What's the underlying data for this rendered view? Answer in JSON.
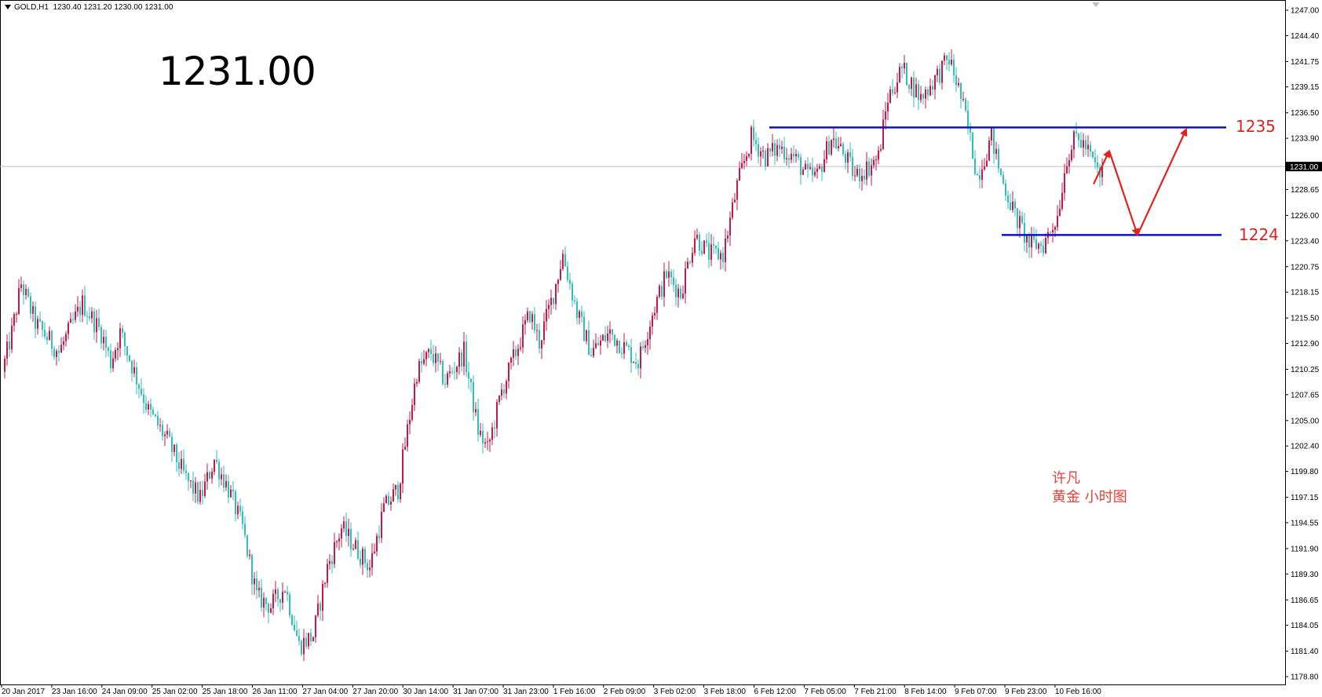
{
  "header": {
    "symbol": "GOLD,H1",
    "ohlc": "1230.40 1231.20 1230.00 1231.00"
  },
  "current_price_label": "1231.00",
  "levels": {
    "resistance_label": "1235",
    "support_label": "1224"
  },
  "annotation": {
    "author": "许凡",
    "description": "黄金  小时图"
  },
  "colors": {
    "bull": "#c8174a",
    "bear": "#2fbfbf",
    "level_line": "#1010c8",
    "arrow": "#e0231e",
    "grid_price_line": "#c0c0c0"
  },
  "chart_data": {
    "type": "candlestick",
    "timeframe": "H1",
    "ylim": [
      1178.8,
      1247.0
    ],
    "y_ticks": [
      "1247.00",
      "1244.40",
      "1241.75",
      "1239.15",
      "1236.50",
      "1233.90",
      "1231.00",
      "1228.65",
      "1226.00",
      "1223.40",
      "1220.75",
      "1218.15",
      "1215.50",
      "1212.90",
      "1210.25",
      "1207.65",
      "1205.00",
      "1202.40",
      "1199.80",
      "1197.15",
      "1194.55",
      "1191.90",
      "1189.30",
      "1186.65",
      "1184.05",
      "1181.40",
      "1178.80"
    ],
    "x_ticks": [
      "20 Jan 2017",
      "23 Jan 16:00",
      "24 Jan 09:00",
      "25 Jan 02:00",
      "25 Jan 18:00",
      "26 Jan 11:00",
      "27 Jan 04:00",
      "27 Jan 20:00",
      "30 Jan 14:00",
      "31 Jan 07:00",
      "31 Jan 23:00",
      "1 Feb 16:00",
      "2 Feb 09:00",
      "3 Feb 02:00",
      "3 Feb 18:00",
      "6 Feb 12:00",
      "7 Feb 05:00",
      "7 Feb 21:00",
      "8 Feb 14:00",
      "9 Feb 07:00",
      "9 Feb 23:00",
      "10 Feb 16:00"
    ],
    "last_price": 1231.0,
    "horizontal_levels": [
      1235,
      1224
    ],
    "path_keypoints": [
      [
        0,
        1210
      ],
      [
        4,
        1214
      ],
      [
        8,
        1219
      ],
      [
        14,
        1215
      ],
      [
        24,
        1212
      ],
      [
        34,
        1217
      ],
      [
        42,
        1214
      ],
      [
        46,
        1211
      ],
      [
        50,
        1214
      ],
      [
        56,
        1210
      ],
      [
        62,
        1206
      ],
      [
        70,
        1203
      ],
      [
        78,
        1199
      ],
      [
        84,
        1197
      ],
      [
        90,
        1201
      ],
      [
        96,
        1198
      ],
      [
        102,
        1194
      ],
      [
        108,
        1187
      ],
      [
        114,
        1186
      ],
      [
        120,
        1188
      ],
      [
        126,
        1182
      ],
      [
        132,
        1183
      ],
      [
        138,
        1190
      ],
      [
        144,
        1194
      ],
      [
        150,
        1192
      ],
      [
        156,
        1190
      ],
      [
        162,
        1196
      ],
      [
        168,
        1198
      ],
      [
        172,
        1204
      ],
      [
        176,
        1210
      ],
      [
        182,
        1212
      ],
      [
        188,
        1209
      ],
      [
        196,
        1212
      ],
      [
        202,
        1204
      ],
      [
        206,
        1202
      ],
      [
        212,
        1208
      ],
      [
        218,
        1212
      ],
      [
        224,
        1216
      ],
      [
        228,
        1213
      ],
      [
        234,
        1218
      ],
      [
        238,
        1222
      ],
      [
        244,
        1216
      ],
      [
        250,
        1212
      ],
      [
        258,
        1214
      ],
      [
        266,
        1212
      ],
      [
        270,
        1211
      ],
      [
        276,
        1216
      ],
      [
        282,
        1220
      ],
      [
        288,
        1218
      ],
      [
        294,
        1224
      ],
      [
        300,
        1222
      ],
      [
        306,
        1222
      ],
      [
        312,
        1229
      ],
      [
        318,
        1234
      ],
      [
        324,
        1232
      ],
      [
        330,
        1233
      ],
      [
        336,
        1232
      ],
      [
        342,
        1230
      ],
      [
        346,
        1230
      ],
      [
        352,
        1234
      ],
      [
        358,
        1232
      ],
      [
        362,
        1230
      ],
      [
        368,
        1231
      ],
      [
        372,
        1232
      ],
      [
        376,
        1238
      ],
      [
        382,
        1241
      ],
      [
        390,
        1238
      ],
      [
        396,
        1240
      ],
      [
        402,
        1242
      ],
      [
        406,
        1239
      ],
      [
        410,
        1235
      ],
      [
        414,
        1230
      ],
      [
        420,
        1234
      ],
      [
        424,
        1230
      ],
      [
        430,
        1226
      ],
      [
        436,
        1223
      ],
      [
        442,
        1223
      ],
      [
        448,
        1226
      ],
      [
        452,
        1232
      ],
      [
        456,
        1234
      ],
      [
        460,
        1233
      ],
      [
        466,
        1230
      ]
    ]
  }
}
